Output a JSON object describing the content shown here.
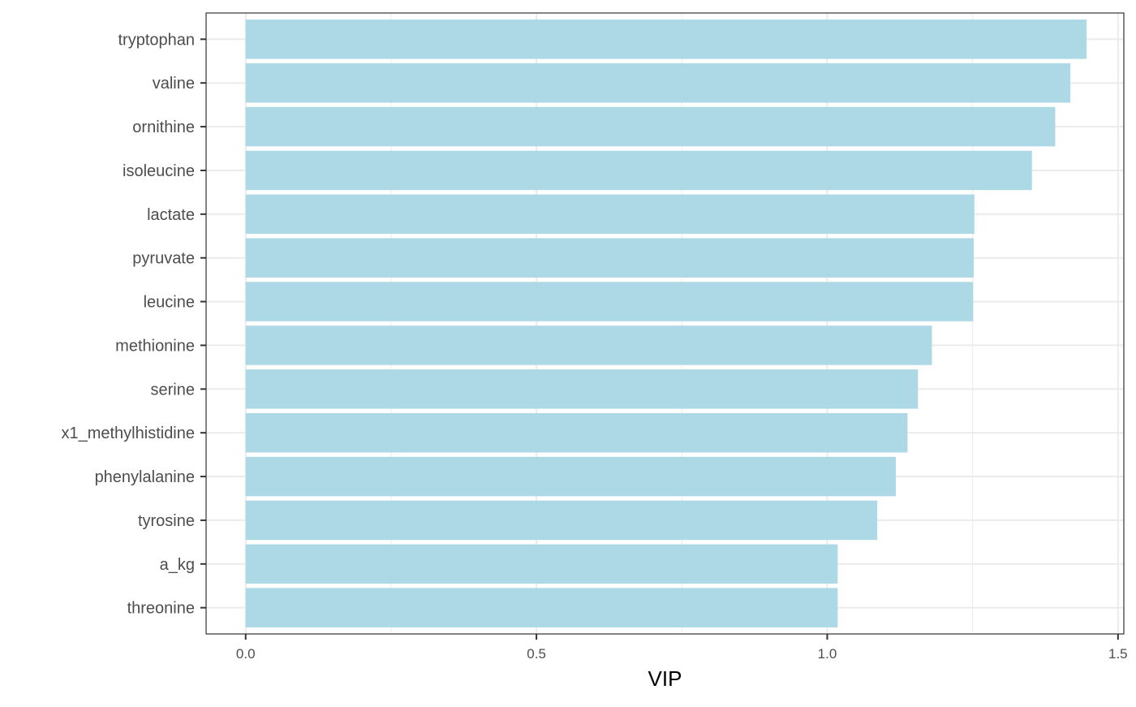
{
  "chart_data": {
    "type": "bar",
    "orientation": "horizontal",
    "categories": [
      "tryptophan",
      "valine",
      "ornithine",
      "isoleucine",
      "lactate",
      "pyruvate",
      "leucine",
      "methionine",
      "serine",
      "x1_methylhistidine",
      "phenylalanine",
      "tyrosine",
      "a_kg",
      "threonine"
    ],
    "values": [
      1.446,
      1.418,
      1.392,
      1.352,
      1.253,
      1.252,
      1.251,
      1.18,
      1.156,
      1.138,
      1.118,
      1.086,
      1.018,
      1.018
    ],
    "title": "",
    "xlabel": "VIP",
    "ylabel": "",
    "xlim": [
      -0.068,
      1.51
    ],
    "xticks": [
      0.0,
      0.5,
      1.0,
      1.5
    ],
    "xtick_labels": [
      "0.0",
      "0.5",
      "1.0",
      "1.5"
    ],
    "grid": true,
    "legend": "none",
    "bar_color": "#add8e6",
    "grid_color": "#ebebeb",
    "panel_border_color": "#333333"
  }
}
